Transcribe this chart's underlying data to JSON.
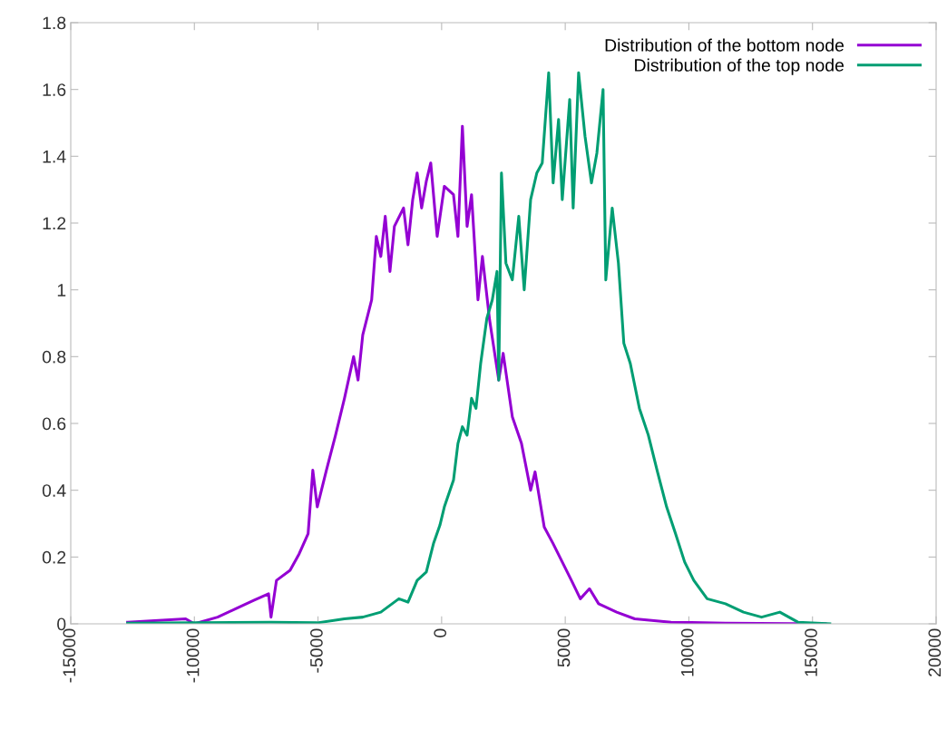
{
  "chart_data": {
    "type": "line",
    "xlim": [
      -15000,
      20000
    ],
    "xticks": [
      -15000,
      -10000,
      -5000,
      0,
      5000,
      10000,
      15000,
      20000
    ],
    "ylim": [
      0,
      1.8
    ],
    "yticks": [
      0,
      0.2,
      0.4,
      0.6,
      0.8,
      1,
      1.2,
      1.4,
      1.6,
      1.8
    ],
    "grid": false,
    "legend": "top right",
    "marker": "none",
    "line_style": "solid",
    "series": [
      {
        "name": "Distribution of the bottom node",
        "color": "#9400d3",
        "x": [
          -12700,
          -10350,
          -10000,
          -9060,
          -8330,
          -7600,
          -7000,
          -6900,
          -6680,
          -6130,
          -5760,
          -5400,
          -5210,
          -5030,
          -4660,
          -4290,
          -3930,
          -3560,
          -3380,
          -3190,
          -2830,
          -2640,
          -2460,
          -2280,
          -2090,
          -1910,
          -1540,
          -1360,
          -1170,
          -990,
          -810,
          -620,
          -440,
          -180,
          110,
          480,
          660,
          840,
          1030,
          1210,
          1470,
          1650,
          1940,
          2310,
          2490,
          2860,
          3230,
          3600,
          3780,
          4150,
          4510,
          4880,
          5250,
          5610,
          5980,
          6350,
          7080,
          7810,
          9280,
          11480,
          15520
        ],
        "values": [
          0.005,
          0.015,
          0,
          0.02,
          0.045,
          0.07,
          0.09,
          0.02,
          0.13,
          0.16,
          0.21,
          0.27,
          0.46,
          0.35,
          0.46,
          0.565,
          0.675,
          0.8,
          0.73,
          0.865,
          0.97,
          1.16,
          1.1,
          1.22,
          1.055,
          1.19,
          1.245,
          1.135,
          1.27,
          1.35,
          1.245,
          1.325,
          1.38,
          1.16,
          1.31,
          1.285,
          1.16,
          1.49,
          1.19,
          1.285,
          0.97,
          1.1,
          0.91,
          0.73,
          0.81,
          0.62,
          0.54,
          0.4,
          0.455,
          0.29,
          0.24,
          0.185,
          0.13,
          0.075,
          0.105,
          0.06,
          0.035,
          0.015,
          0.005,
          0.002,
          0
        ]
      },
      {
        "name": "Distribution of the top node",
        "color": "#009e73",
        "x": [
          -12700,
          -6900,
          -5030,
          -3930,
          -3190,
          -2460,
          -1730,
          -1360,
          -990,
          -620,
          -330,
          -70,
          110,
          480,
          660,
          840,
          1030,
          1210,
          1390,
          1580,
          1830,
          2050,
          2240,
          2310,
          2420,
          2600,
          2860,
          3120,
          3340,
          3600,
          3850,
          4070,
          4330,
          4510,
          4730,
          4880,
          5180,
          5320,
          5540,
          5800,
          6060,
          6280,
          6530,
          6640,
          6900,
          7150,
          7370,
          7630,
          8000,
          8360,
          8730,
          9100,
          9460,
          9830,
          10200,
          10740,
          11480,
          12210,
          12940,
          13680,
          14410,
          15700
        ],
        "values": [
          0.002,
          0.005,
          0.003,
          0.015,
          0.02,
          0.035,
          0.075,
          0.065,
          0.13,
          0.155,
          0.24,
          0.295,
          0.35,
          0.43,
          0.54,
          0.59,
          0.565,
          0.675,
          0.645,
          0.78,
          0.915,
          0.97,
          1.055,
          0.73,
          1.35,
          1.08,
          1.03,
          1.22,
          1.0,
          1.27,
          1.35,
          1.38,
          1.65,
          1.32,
          1.51,
          1.27,
          1.57,
          1.245,
          1.65,
          1.46,
          1.32,
          1.41,
          1.6,
          1.03,
          1.245,
          1.08,
          0.84,
          0.78,
          0.645,
          0.565,
          0.455,
          0.35,
          0.27,
          0.185,
          0.13,
          0.075,
          0.06,
          0.035,
          0.02,
          0.035,
          0.005,
          0
        ]
      }
    ]
  }
}
